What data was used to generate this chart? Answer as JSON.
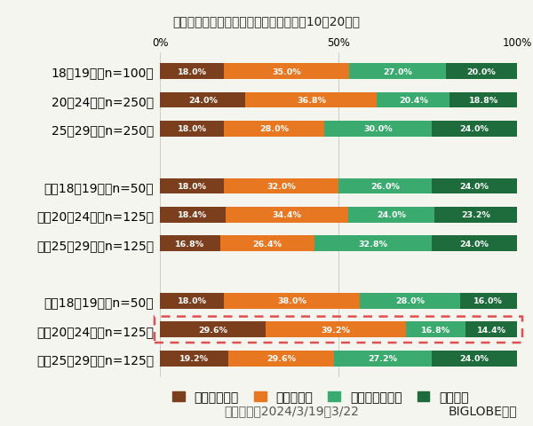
{
  "title": "最近、メンタルヘルスの不調を感じる【10～20代】",
  "categories": [
    "18～19歳（n=100）",
    "20～24歳（n=250）",
    "25～29歳（n=250）",
    "",
    "男性18、19歳（n=50）",
    "男性20～24歳（n=125）",
    "男性25～29歳（n=125）",
    "",
    "女性18、19歳（n=50）",
    "女性20～24歳（n=125）",
    "女性25～29歳（n=125）"
  ],
  "data": [
    [
      18.0,
      35.0,
      27.0,
      20.0
    ],
    [
      24.0,
      36.8,
      20.4,
      18.8
    ],
    [
      18.0,
      28.0,
      30.0,
      24.0
    ],
    [
      0,
      0,
      0,
      0
    ],
    [
      18.0,
      32.0,
      26.0,
      24.0
    ],
    [
      18.4,
      34.4,
      24.0,
      23.2
    ],
    [
      16.8,
      26.4,
      32.8,
      24.0
    ],
    [
      0,
      0,
      0,
      0
    ],
    [
      18.0,
      38.0,
      28.0,
      16.0
    ],
    [
      29.6,
      39.2,
      16.8,
      14.4
    ],
    [
      19.2,
      29.6,
      27.2,
      24.0
    ]
  ],
  "colors": [
    "#7b3f1e",
    "#e87722",
    "#3aaa6f",
    "#1e6b3c"
  ],
  "legend_labels": [
    "とても感じる",
    "やや感じる",
    "あまり感じない",
    "感じない"
  ],
  "highlighted_row": 9,
  "highlight_color": "#e05050",
  "footnote": "調査期間：2024/3/19～3/22",
  "footnote_brand": "BIGLOBE調べ",
  "background_color": "#f5f5f0",
  "bar_height": 0.55,
  "figsize": [
    6.0,
    4.81
  ],
  "dpi": 100
}
